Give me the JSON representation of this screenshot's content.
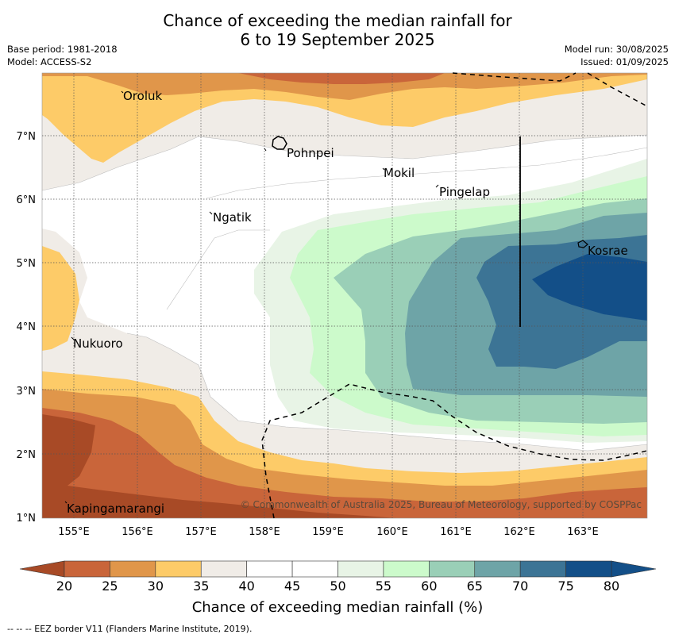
{
  "title_line1": "Chance of exceeding the median rainfall for",
  "title_line2": "6 to 19 September 2025",
  "base_period": "Base period: 1981-2018",
  "model": "Model: ACCESS-S2",
  "model_run": "Model run: 30/08/2025",
  "issued": "Issued: 01/09/2025",
  "copyright": "© Commonwealth of Australia 2025, Bureau of Meteorology, supported by COSPPac",
  "places": {
    "oroluk": "Oroluk",
    "pohnpei": "Pohnpei",
    "mokil": "Mokil",
    "pingelap": "Pingelap",
    "ngatik": "Ngatik",
    "kosrae": "Kosrae",
    "nukuoro": "Nukuoro",
    "kapingamarangi": "Kapingamarangi"
  },
  "lat_labels": [
    "7°N",
    "6°N",
    "5°N",
    "4°N",
    "3°N",
    "2°N",
    "1°N"
  ],
  "lon_labels": [
    "155°E",
    "156°E",
    "157°E",
    "158°E",
    "159°E",
    "160°E",
    "161°E",
    "162°E",
    "163°E"
  ],
  "colorbar": {
    "ticks": [
      "20",
      "25",
      "30",
      "35",
      "40",
      "45",
      "50",
      "55",
      "60",
      "65",
      "70",
      "75",
      "80"
    ],
    "colors": [
      "#a84a26",
      "#c9653a",
      "#e0964a",
      "#fdcb68",
      "#f0ece7",
      "#ffffff",
      "#ffffff",
      "#e8f4e6",
      "#ccfacb",
      "#9acfb7",
      "#6ea4a7",
      "#3c7495",
      "#134f88"
    ],
    "title": "Chance of exceeding median rainfall (%)"
  },
  "footer_note": "--  --  -- EEZ border V11 (Flanders Marine Institute, 2019)."
}
